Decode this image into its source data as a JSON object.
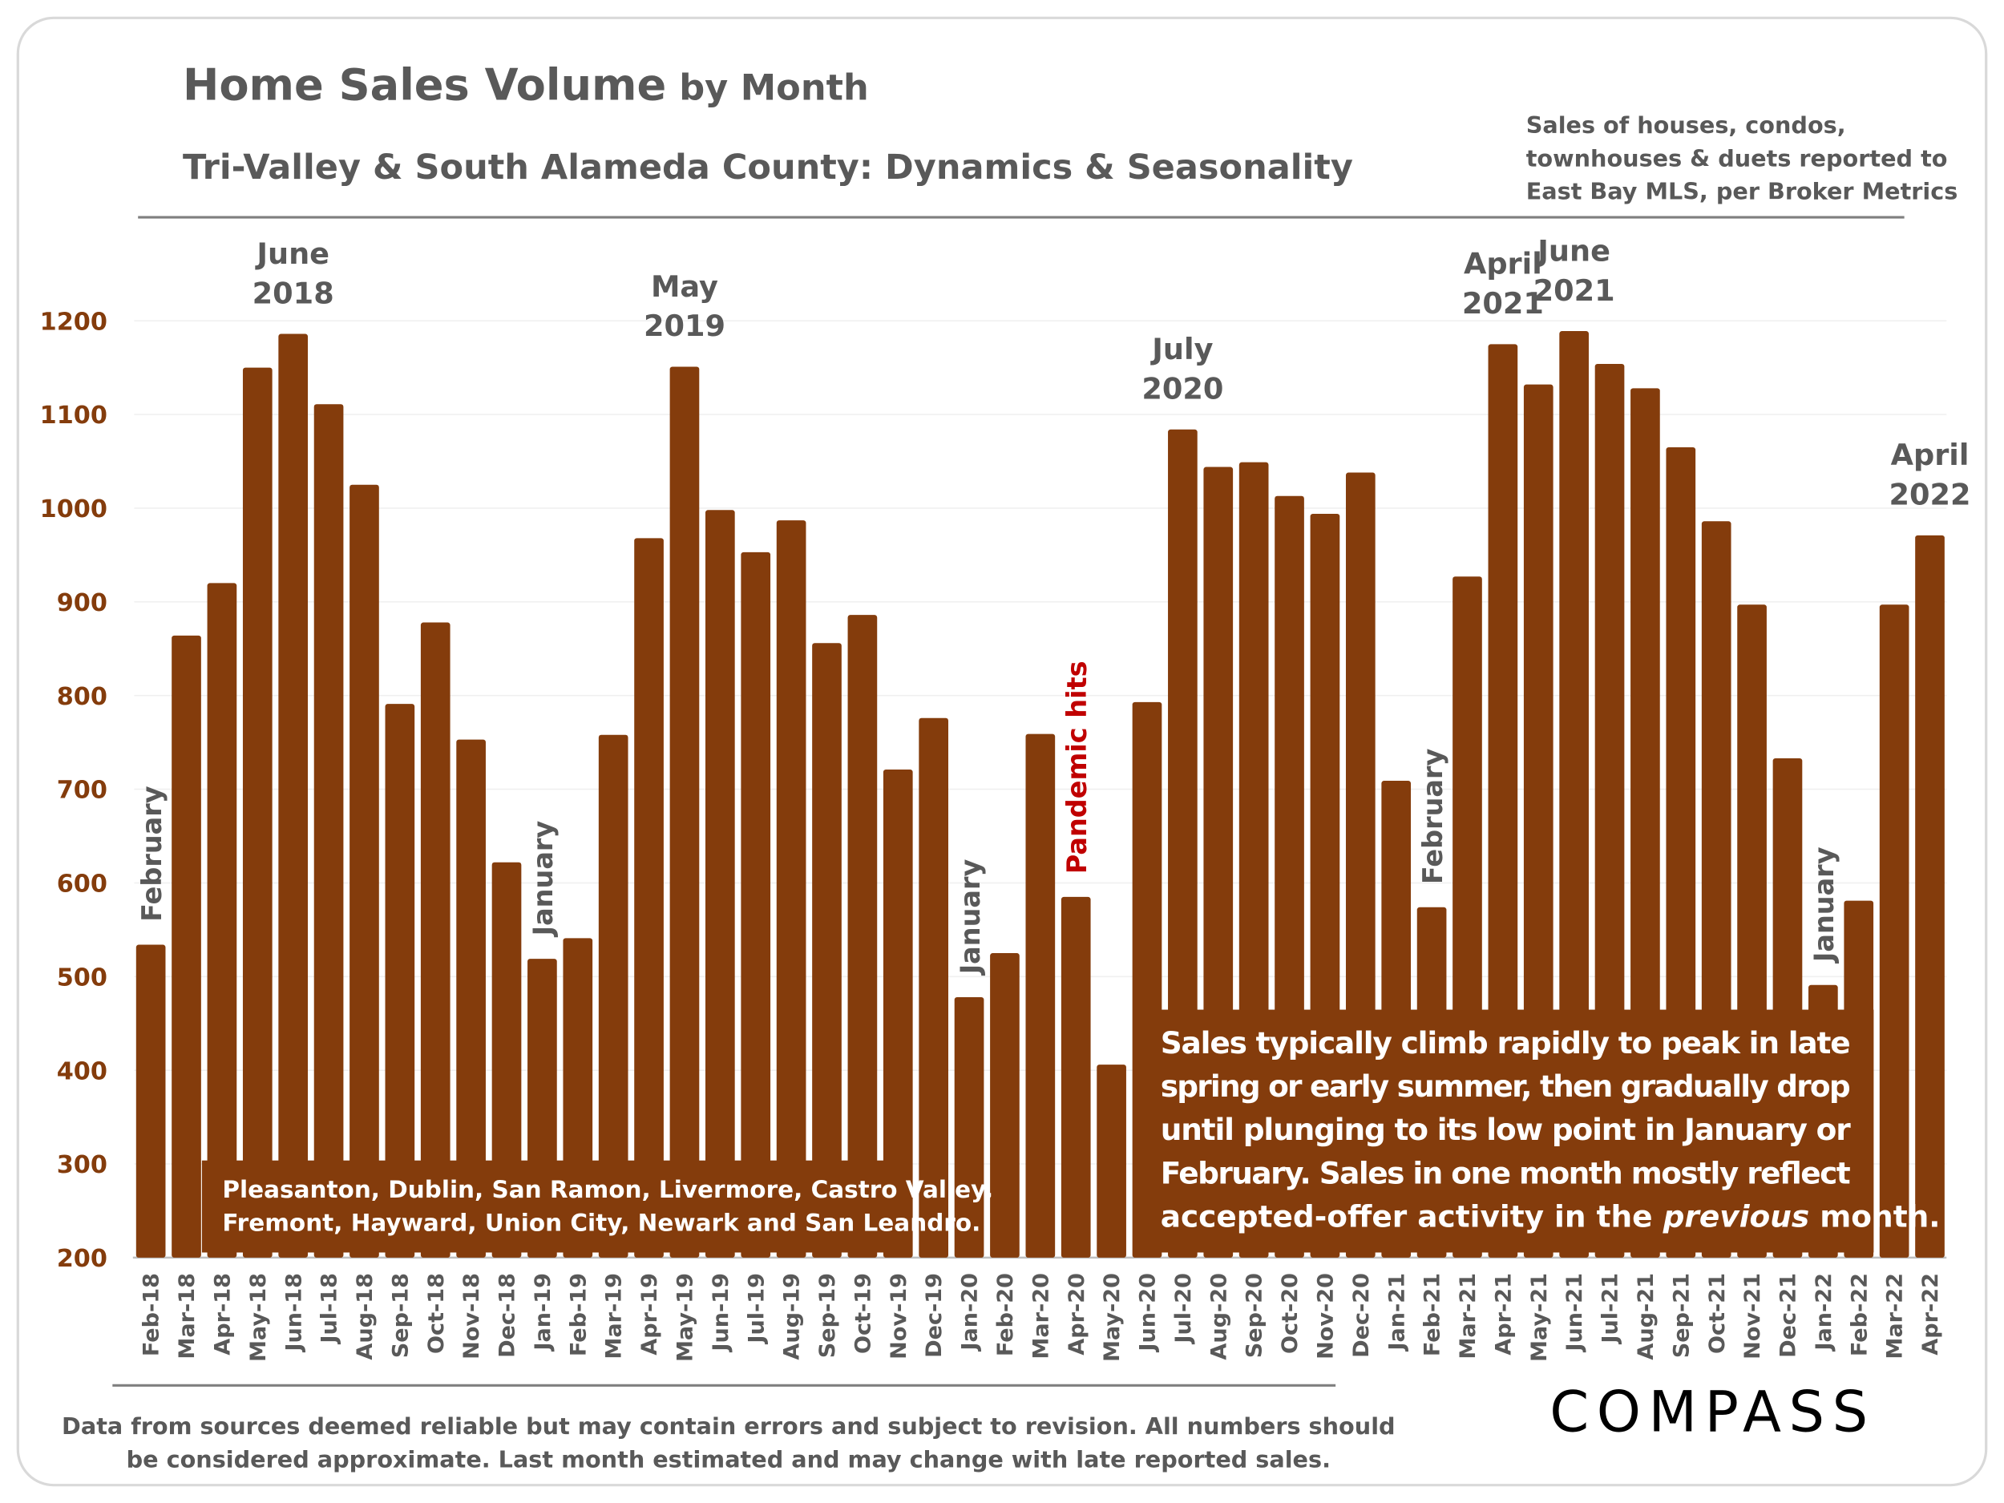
{
  "title_main": "Home Sales Volume",
  "title_suffix": "by Month",
  "subtitle": "Tri-Valley & South Alameda County: Dynamics & Seasonality",
  "source_note": [
    "Sales of houses, condos,",
    "townhouses & duets reported to",
    "East Bay MLS, per Broker Metrics"
  ],
  "region_box": [
    "Pleasanton, Dublin, San Ramon, Livermore, Castro Valley,",
    "Fremont, Hayward, Union City, Newark and San Leandro."
  ],
  "insight_box": {
    "line1": "Sales typically climb rapidly to peak in late",
    "line2": "spring or early summer, then gradually drop",
    "line3": "until plunging to its low point in January or",
    "line4": "February. Sales in one month mostly reflect",
    "line5_pre": "accepted-offer activity in the ",
    "line5_em": "previous",
    "line5_post": " month."
  },
  "footer": [
    "Data from sources deemed reliable but may contain errors and subject to revision. All numbers should",
    "be considered approximate.  Last month estimated and may change with late reported sales."
  ],
  "logo": "COMPASS",
  "colors": {
    "bar": "#843C0C",
    "text": "#595959",
    "axis_label": "#843C0C",
    "pandemic": "#C00000"
  },
  "chart_data": {
    "type": "bar",
    "ylim": [
      200,
      1200
    ],
    "yticks": [
      200,
      300,
      400,
      500,
      600,
      700,
      800,
      900,
      1000,
      1100,
      1200
    ],
    "grid": true,
    "categories": [
      "Feb-18",
      "Mar-18",
      "Apr-18",
      "May-18",
      "Jun-18",
      "Jul-18",
      "Aug-18",
      "Sep-18",
      "Oct-18",
      "Nov-18",
      "Dec-18",
      "Jan-19",
      "Feb-19",
      "Mar-19",
      "Apr-19",
      "May-19",
      "Jun-19",
      "Jul-19",
      "Aug-19",
      "Sep-19",
      "Oct-19",
      "Nov-19",
      "Dec-19",
      "Jan-20",
      "Feb-20",
      "Mar-20",
      "Apr-20",
      "May-20",
      "Jun-20",
      "Jul-20",
      "Aug-20",
      "Sep-20",
      "Oct-20",
      "Nov-20",
      "Dec-20",
      "Jan-21",
      "Feb-21",
      "Mar-21",
      "Apr-21",
      "May-21",
      "Jun-21",
      "Jul-21",
      "Aug-21",
      "Sep-21",
      "Oct-21",
      "Nov-21",
      "Dec-21",
      "Jan-22",
      "Feb-22",
      "Mar-22",
      "Apr-22"
    ],
    "values": [
      534,
      864,
      920,
      1150,
      1186,
      1111,
      1025,
      791,
      878,
      753,
      622,
      519,
      541,
      758,
      968,
      1151,
      998,
      953,
      987,
      856,
      886,
      721,
      776,
      478,
      525,
      759,
      585,
      406,
      793,
      1084,
      1044,
      1049,
      1013,
      994,
      1038,
      709,
      574,
      927,
      1175,
      1132,
      1189,
      1154,
      1128,
      1065,
      986,
      897,
      733,
      491,
      581,
      897,
      971
    ],
    "annotations": [
      {
        "bar": "Jun-18",
        "lines": [
          "June",
          "2018"
        ]
      },
      {
        "bar": "May-19",
        "lines": [
          "May",
          "2019"
        ]
      },
      {
        "bar": "Jul-20",
        "lines": [
          "July",
          "2020"
        ]
      },
      {
        "bar": "Apr-21",
        "lines": [
          "April",
          "2021"
        ]
      },
      {
        "bar": "Jun-21",
        "lines": [
          "June",
          "2021"
        ]
      },
      {
        "bar": "Apr-22",
        "lines": [
          "April",
          "2022"
        ]
      }
    ],
    "vertical_annotations": [
      {
        "bar": "Feb-18",
        "text": "February"
      },
      {
        "bar": "Jan-19",
        "text": "January"
      },
      {
        "bar": "Jan-20",
        "text": "January"
      },
      {
        "bar": "Apr-20",
        "text": "Pandemic hits",
        "highlight": true
      },
      {
        "bar": "Feb-21",
        "text": "February"
      },
      {
        "bar": "Jan-22",
        "text": "January"
      }
    ]
  }
}
